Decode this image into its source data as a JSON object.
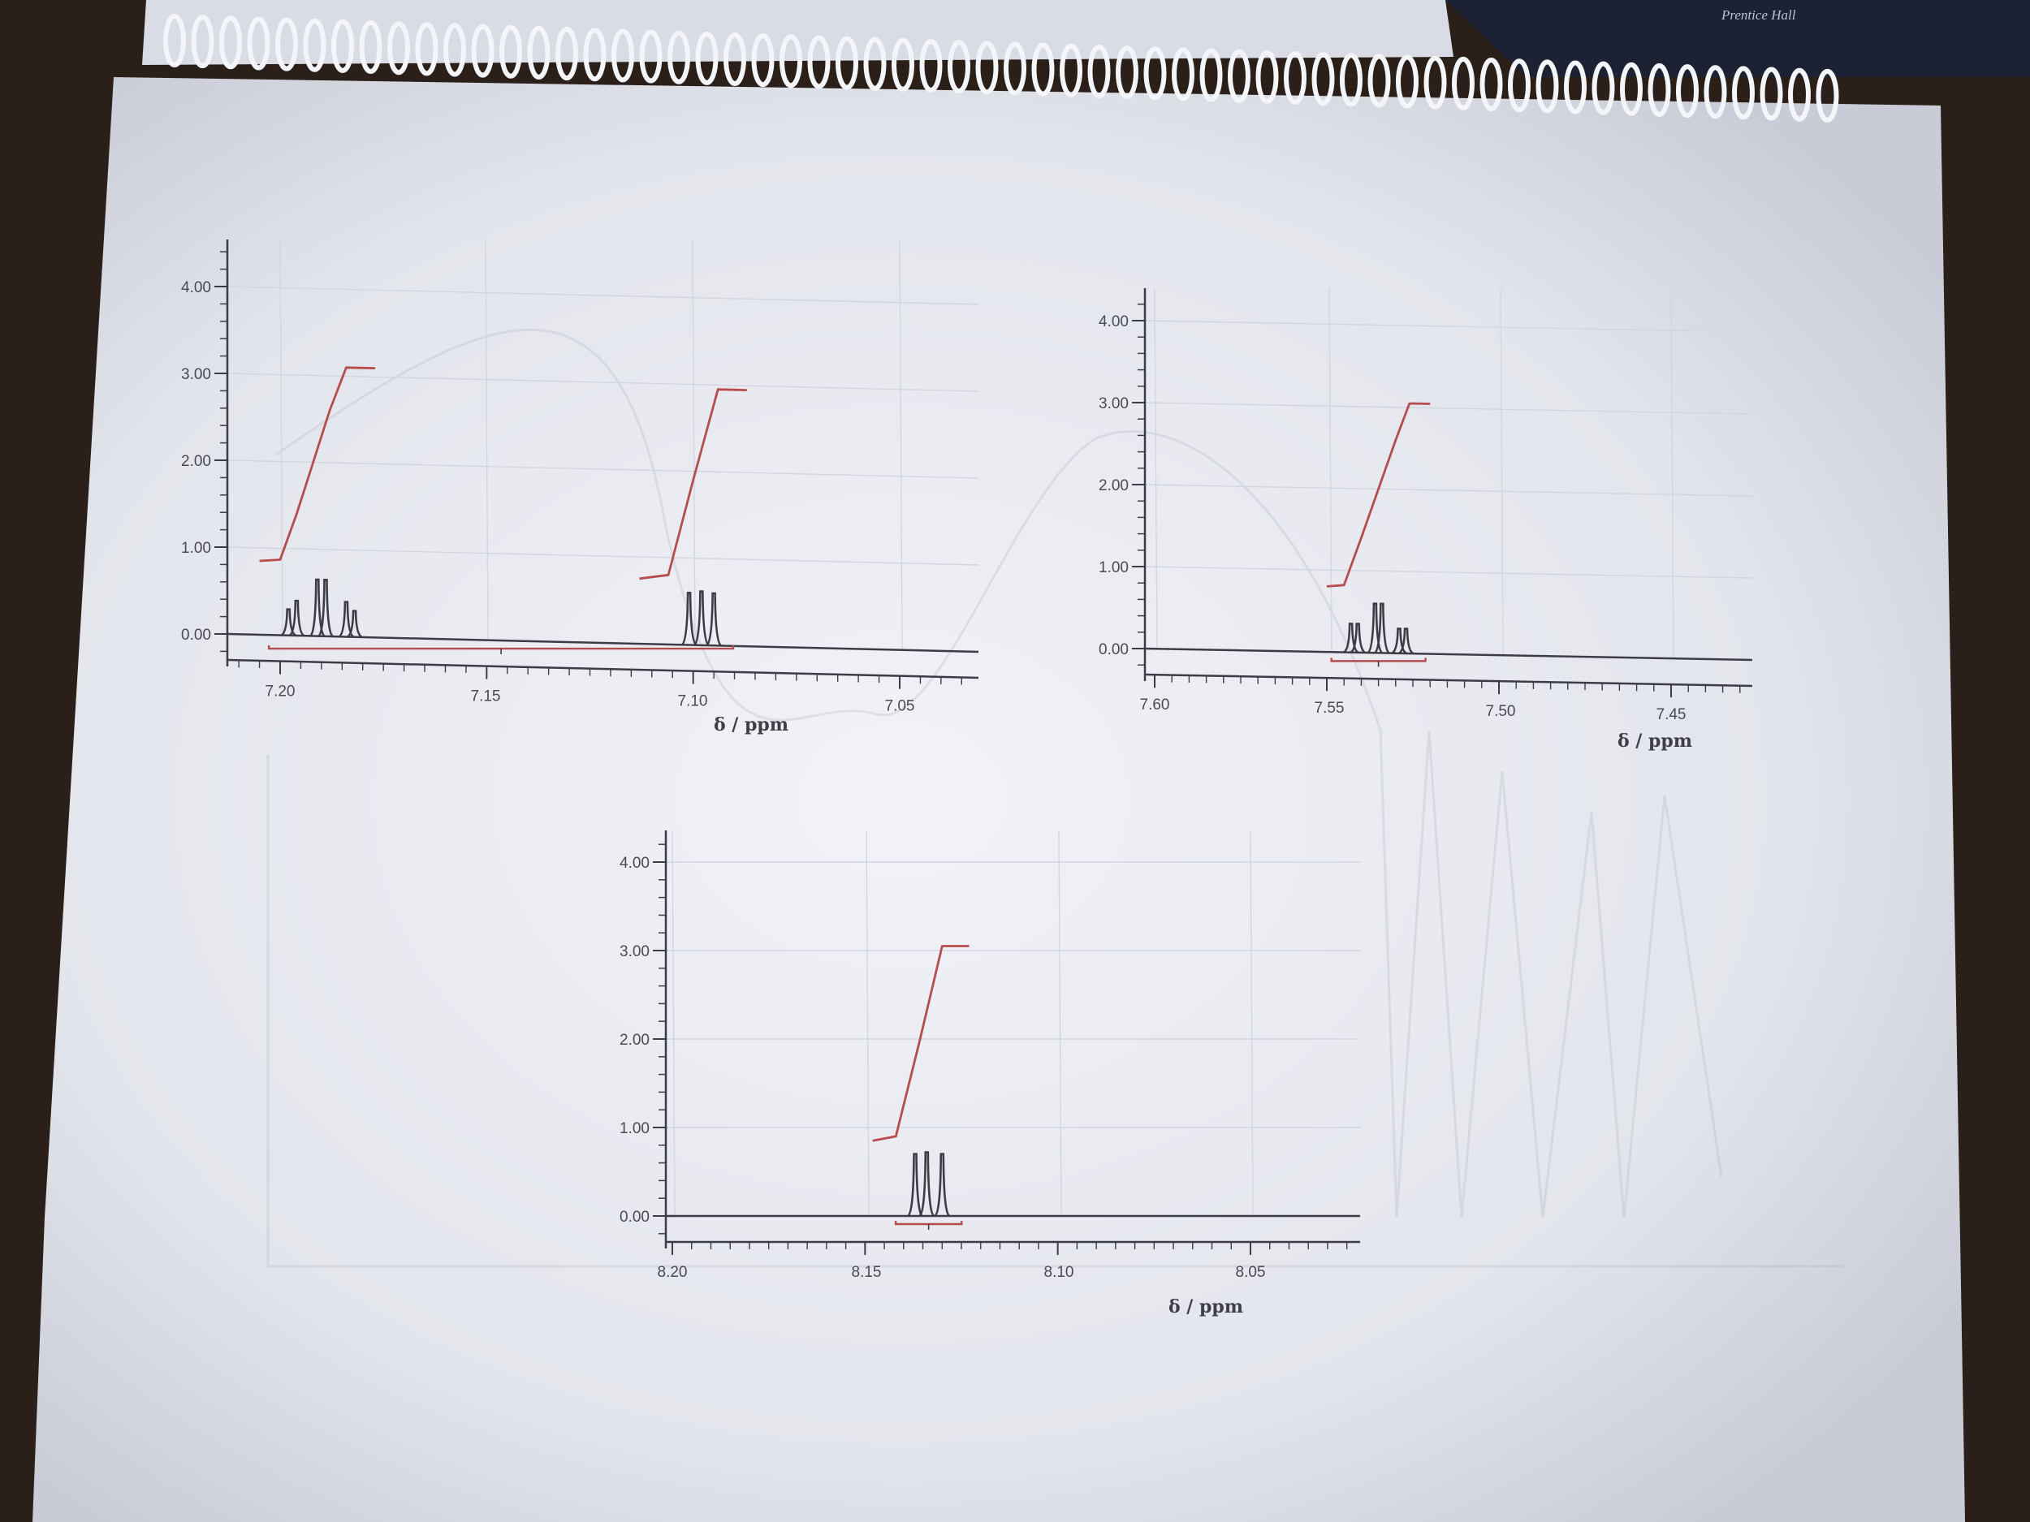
{
  "notebook": {
    "publisher_text": "Prentice Hall",
    "colors": {
      "paper": "#eceef4",
      "spectrum": "#3c3c46",
      "integral": "#b64c4c",
      "grid": "#d2d6e2"
    }
  },
  "chart_data": [
    {
      "type": "line",
      "title": "",
      "xlabel": "δ / ppm",
      "ylabel": "",
      "xlim": [
        7.21,
        7.027
      ],
      "ylim": [
        -0.2,
        4.3
      ],
      "x_axis_reversed": true,
      "xticks": [
        "7.20",
        "7.15",
        "7.10",
        "7.05"
      ],
      "yticks": [
        "0.00",
        "1.00",
        "2.00",
        "3.00",
        "4.00"
      ],
      "grid": true,
      "series": [
        {
          "kind": "spectrum",
          "x": [
            7.198,
            7.196,
            7.191,
            7.189,
            7.184,
            7.182,
            7.101,
            7.098,
            7.095
          ],
          "y": [
            0.3,
            0.4,
            0.65,
            0.65,
            0.4,
            0.3,
            0.6,
            0.62,
            0.6
          ]
        },
        {
          "kind": "integral",
          "x": [
            7.205,
            7.2,
            7.196,
            7.192,
            7.188,
            7.184,
            7.177
          ],
          "y": [
            0.85,
            0.87,
            1.4,
            2.0,
            2.6,
            3.1,
            3.1
          ]
        },
        {
          "kind": "integral",
          "x": [
            7.113,
            7.106,
            7.1,
            7.094,
            7.087
          ],
          "y": [
            0.75,
            0.8,
            1.9,
            2.95,
            2.95
          ]
        }
      ]
    },
    {
      "type": "line",
      "title": "",
      "xlabel": "δ / ppm",
      "ylabel": "",
      "xlim": [
        7.605,
        7.43
      ],
      "ylim": [
        -0.2,
        4.3
      ],
      "x_axis_reversed": true,
      "xticks": [
        "7.60",
        "7.55",
        "7.50",
        "7.45"
      ],
      "yticks": [
        "0.00",
        "1.00",
        "2.00",
        "3.00",
        "4.00"
      ],
      "grid": true,
      "series": [
        {
          "kind": "spectrum",
          "x": [
            7.543,
            7.541,
            7.536,
            7.534,
            7.529,
            7.527
          ],
          "y": [
            0.35,
            0.35,
            0.6,
            0.6,
            0.3,
            0.3
          ]
        },
        {
          "kind": "integral",
          "x": [
            7.55,
            7.545,
            7.54,
            7.535,
            7.53,
            7.526,
            7.52
          ],
          "y": [
            0.8,
            0.82,
            1.4,
            2.0,
            2.6,
            3.05,
            3.05
          ]
        }
      ]
    },
    {
      "type": "line",
      "title": "",
      "xlabel": "δ / ppm",
      "ylabel": "",
      "xlim": [
        8.2,
        8.025
      ],
      "ylim": [
        -0.2,
        4.3
      ],
      "x_axis_reversed": true,
      "xticks": [
        "8.20",
        "8.15",
        "8.10",
        "8.05"
      ],
      "yticks": [
        "0.00",
        "1.00",
        "2.00",
        "3.00",
        "4.00"
      ],
      "grid": true,
      "series": [
        {
          "kind": "spectrum",
          "x": [
            8.137,
            8.134,
            8.13
          ],
          "y": [
            0.7,
            0.72,
            0.7
          ]
        },
        {
          "kind": "integral",
          "x": [
            8.148,
            8.142,
            8.136,
            8.13,
            8.123
          ],
          "y": [
            0.85,
            0.9,
            1.95,
            3.05,
            3.05
          ]
        }
      ]
    }
  ]
}
